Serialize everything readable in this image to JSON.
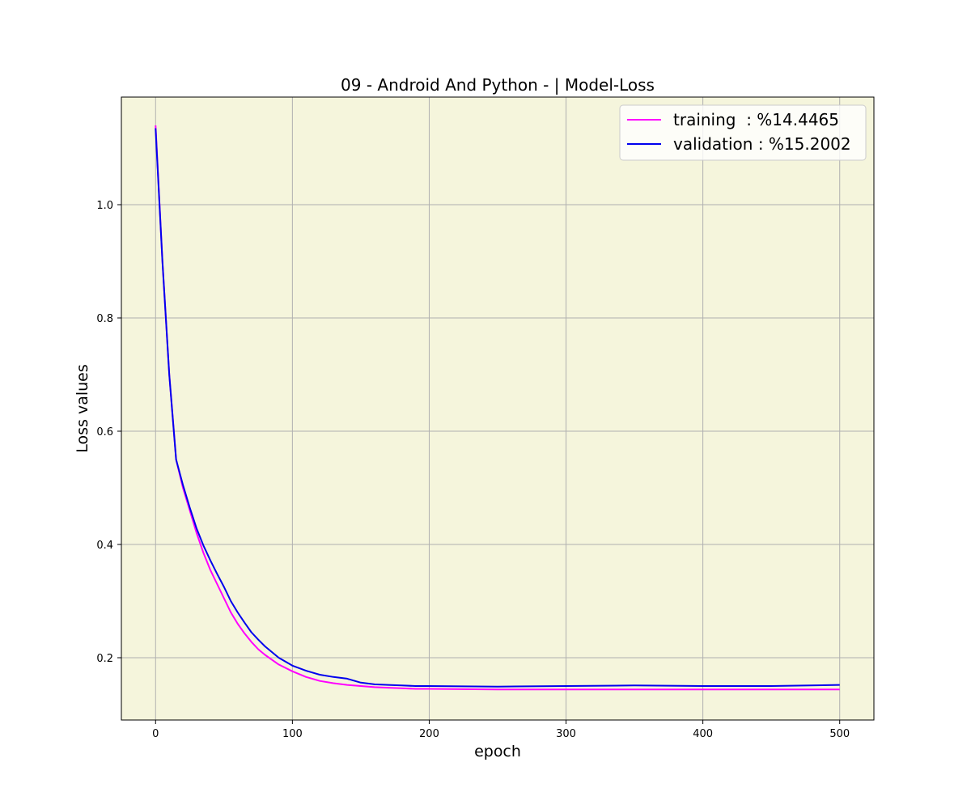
{
  "chart_data": {
    "type": "line",
    "title": "09 - Android And Python - | Model-Loss",
    "xlabel": "epoch",
    "ylabel": "Loss values",
    "xlim": [
      -25,
      525
    ],
    "ylim": [
      0.09,
      1.19
    ],
    "xticks": [
      0,
      100,
      200,
      300,
      400,
      500
    ],
    "xtick_labels": [
      "0",
      "100",
      "200",
      "300",
      "400",
      "500"
    ],
    "yticks": [
      0.2,
      0.4,
      0.6,
      0.8,
      1.0
    ],
    "ytick_labels": [
      "0.2",
      "0.4",
      "0.6",
      "0.8",
      "1.0"
    ],
    "grid": true,
    "legend_position": "upper-right",
    "plot_background": "#f5f5dc",
    "series": [
      {
        "name": "training  : %14.4465",
        "color": "#ff00ff",
        "x": [
          0,
          5,
          10,
          15,
          20,
          25,
          30,
          35,
          40,
          45,
          50,
          55,
          60,
          65,
          70,
          75,
          80,
          90,
          100,
          110,
          120,
          130,
          140,
          150,
          160,
          170,
          180,
          190,
          200,
          250,
          300,
          350,
          400,
          450,
          500
        ],
        "values": [
          1.14,
          0.9,
          0.7,
          0.55,
          0.5,
          0.46,
          0.42,
          0.385,
          0.355,
          0.33,
          0.305,
          0.28,
          0.26,
          0.243,
          0.228,
          0.215,
          0.205,
          0.188,
          0.176,
          0.166,
          0.159,
          0.155,
          0.152,
          0.15,
          0.148,
          0.147,
          0.146,
          0.145,
          0.145,
          0.144,
          0.144,
          0.144,
          0.144,
          0.144,
          0.144
        ]
      },
      {
        "name": "validation : %15.2002",
        "color": "#0000ee",
        "x": [
          0,
          5,
          10,
          15,
          20,
          25,
          30,
          35,
          40,
          45,
          50,
          55,
          60,
          65,
          70,
          75,
          80,
          90,
          100,
          110,
          120,
          130,
          140,
          150,
          160,
          170,
          180,
          190,
          200,
          250,
          300,
          350,
          400,
          450,
          500
        ],
        "values": [
          1.135,
          0.9,
          0.7,
          0.55,
          0.505,
          0.465,
          0.428,
          0.398,
          0.372,
          0.348,
          0.325,
          0.3,
          0.28,
          0.262,
          0.245,
          0.232,
          0.22,
          0.2,
          0.186,
          0.177,
          0.17,
          0.166,
          0.163,
          0.156,
          0.153,
          0.152,
          0.151,
          0.15,
          0.15,
          0.149,
          0.15,
          0.151,
          0.15,
          0.15,
          0.152
        ]
      }
    ]
  }
}
